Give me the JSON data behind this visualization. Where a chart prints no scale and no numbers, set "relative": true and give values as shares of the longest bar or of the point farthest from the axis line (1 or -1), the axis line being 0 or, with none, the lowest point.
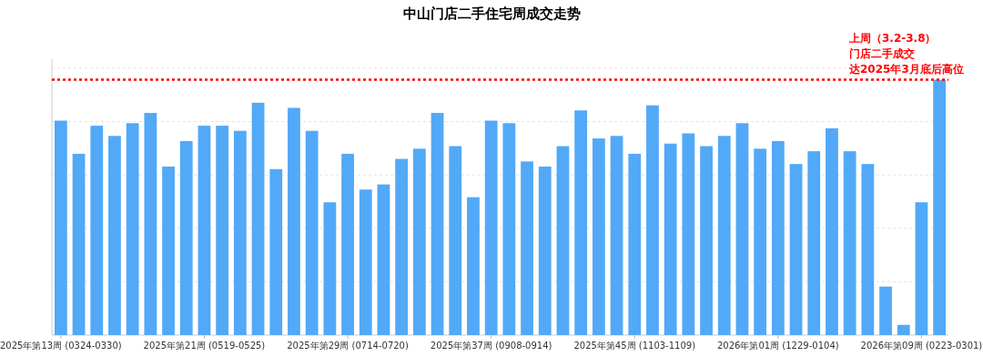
{
  "chart_data": {
    "type": "bar",
    "title": "中山门店二手住宅周成交走势",
    "categories": [
      "2025年第13周 (0324-0330)",
      null,
      null,
      null,
      null,
      null,
      null,
      null,
      "2025年第21周 (0519-0525)",
      null,
      null,
      null,
      null,
      null,
      null,
      null,
      "2025年第29周 (0714-0720)",
      null,
      null,
      null,
      null,
      null,
      null,
      null,
      "2025年第37周 (0908-0914)",
      null,
      null,
      null,
      null,
      null,
      null,
      null,
      "2025年第45周 (1103-1109)",
      null,
      null,
      null,
      null,
      null,
      null,
      null,
      "2026年第01周 (1229-0104)",
      null,
      null,
      null,
      null,
      null,
      null,
      null,
      "2026年第09周 (0223-0301)",
      null
    ],
    "values": [
      0.84,
      0.71,
      0.82,
      0.78,
      0.83,
      0.87,
      0.66,
      0.76,
      0.82,
      0.82,
      0.8,
      0.91,
      0.65,
      0.89,
      0.8,
      0.52,
      0.71,
      0.57,
      0.59,
      0.69,
      0.73,
      0.87,
      0.74,
      0.54,
      0.84,
      0.83,
      0.68,
      0.66,
      0.74,
      0.88,
      0.77,
      0.78,
      0.71,
      0.9,
      0.75,
      0.79,
      0.74,
      0.78,
      0.83,
      0.73,
      0.76,
      0.67,
      0.72,
      0.81,
      0.72,
      0.67,
      0.19,
      0.04,
      0.52,
      1
    ],
    "color": "#52a9f7",
    "relative": true,
    "grid": "y",
    "ref_lines": [
      {
        "axis": "y",
        "value": 1,
        "color": "#ff0000",
        "line_style": "dotted"
      }
    ],
    "annotations": [
      "上周（3.2-3.8）",
      "门店二手成交",
      "达2025年3月底后高位"
    ]
  }
}
